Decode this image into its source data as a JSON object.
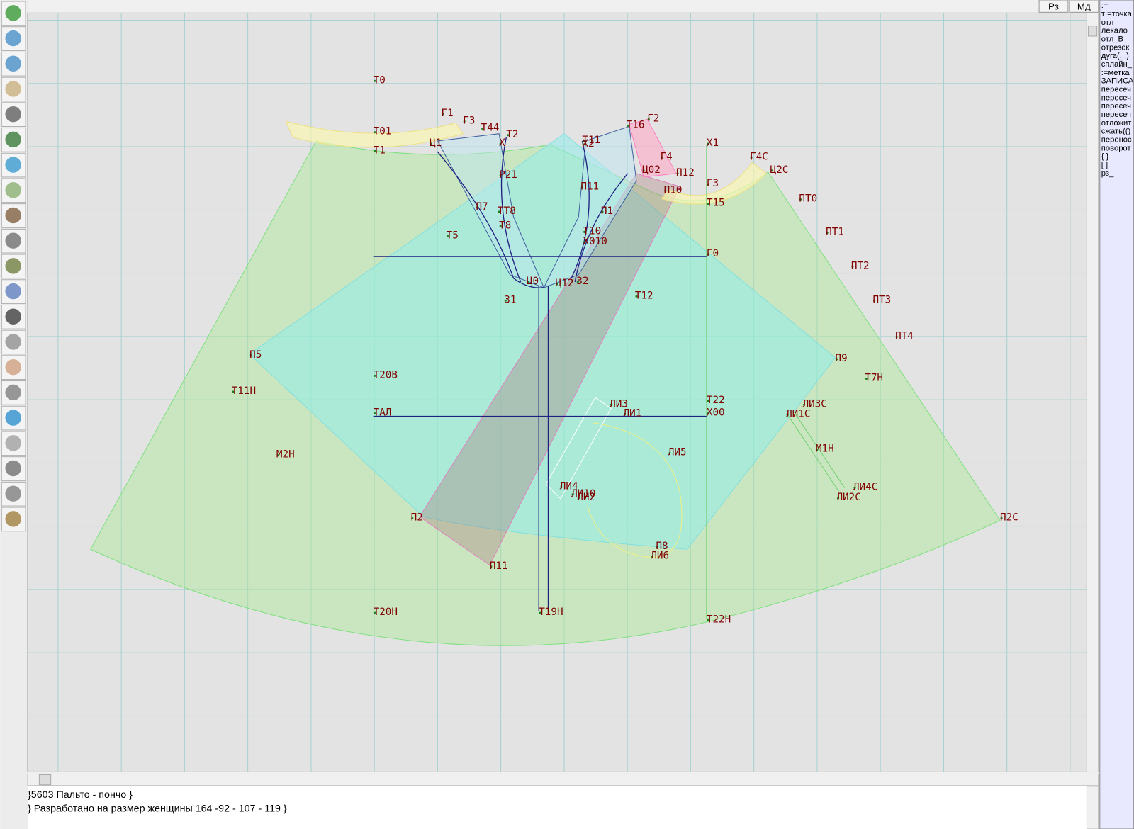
{
  "toolbar": {
    "buttons": [
      "Рз",
      "Мд"
    ]
  },
  "labels": [
    "Т0",
    "Т01",
    "Т1",
    "Г1",
    "Г3",
    "Т44",
    "Т2",
    "Ц1",
    "Х",
    "Т11",
    "Х2",
    "Т16",
    "Г2",
    "Х1",
    "Г4С",
    "Ц2С",
    "Г4",
    "Ц02",
    "П12",
    "Г3",
    "П10",
    "Т15",
    "Р21",
    "П11",
    "ПТ0",
    "ПТ1",
    "ПТ2",
    "ПТ3",
    "ПТ4",
    "П7",
    "ТТ8",
    "Т8",
    "П1",
    "Т10",
    "Х010",
    "Т5",
    "Г0",
    "Ц0",
    "Ц12",
    "З2",
    "З1",
    "Т12",
    "П5",
    "Т20В",
    "П9",
    "Т7Н",
    "Т11Н",
    "Т22",
    "Х00",
    "ТАЛ",
    "ЛИ3",
    "ЛИ1",
    "ЛИ3С",
    "ЛИ1С",
    "М2Н",
    "ЛИ5",
    "М1Н",
    "ЛИ4",
    "ЛИ10",
    "ЛИ2",
    "ЛИ4С",
    "ЛИ2С",
    "П2",
    "П2С",
    "П8",
    "ЛИ6",
    "П11",
    "Т20Н",
    "Т19Н",
    "Т22Н"
  ],
  "command_panel": [
    ":=",
    "т:=точка",
    "отл",
    "лекало",
    "отл_В",
    "отрезок",
    "дуга(,,,)",
    "сплайн_",
    ":=метка",
    "ЗАПИСА",
    "пересеч",
    "пересеч",
    "пересеч",
    "пересеч",
    "отложит",
    "сжать(()",
    "перенос",
    "поворот",
    "{ }",
    "[ ]",
    "рз_"
  ],
  "status": [
    "}5603  Пальто - пончо  }",
    "} Разработано на размер женщины 164 -92 - 107 - 119 }"
  ]
}
